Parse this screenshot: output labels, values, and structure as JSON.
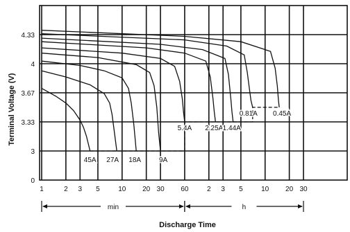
{
  "chart_data": {
    "type": "line",
    "title": "",
    "xlabel": "Discharge Time",
    "ylabel": "Terminal Voltage (V)",
    "x_scale": "log",
    "x_unit_note": "x values in minutes (60 min = 1 h)",
    "xlim_minutes": [
      1,
      1800
    ],
    "ylim": [
      0,
      4.6
    ],
    "grid": true,
    "x_ticks_minutes": [
      1,
      2,
      3,
      5,
      10,
      20,
      30,
      60,
      120,
      180,
      300,
      600,
      1200,
      1800
    ],
    "x_tick_labels": [
      "1",
      "2",
      "3",
      "5",
      "10",
      "20",
      "30",
      "60",
      "2",
      "3",
      "5",
      "10",
      "20",
      "30"
    ],
    "y_ticks": [
      0,
      3,
      3.33,
      3.67,
      4,
      4.33
    ],
    "y_tick_labels": [
      "0",
      "3",
      "3.33",
      "3.67",
      "4",
      "4.33"
    ],
    "time_ranges": [
      {
        "label": "min",
        "from_minutes": 1,
        "to_minutes": 60
      },
      {
        "label": "h",
        "from_minutes": 60,
        "to_minutes": 1800
      }
    ],
    "series": [
      {
        "name": "45A",
        "points": [
          [
            1,
            3.72
          ],
          [
            1.5,
            3.63
          ],
          [
            2,
            3.55
          ],
          [
            2.5,
            3.46
          ],
          [
            3,
            3.35
          ],
          [
            3.3,
            3.27
          ],
          [
            3.6,
            3.17
          ],
          [
            4,
            3.0
          ]
        ]
      },
      {
        "name": "27A",
        "points": [
          [
            1,
            3.92
          ],
          [
            2,
            3.85
          ],
          [
            4,
            3.76
          ],
          [
            6,
            3.66
          ],
          [
            7,
            3.55
          ],
          [
            7.5,
            3.42
          ],
          [
            8,
            3.22
          ],
          [
            8.6,
            3.0
          ]
        ]
      },
      {
        "name": "18A",
        "points": [
          [
            1,
            4.03
          ],
          [
            3,
            3.98
          ],
          [
            6,
            3.92
          ],
          [
            10,
            3.84
          ],
          [
            12,
            3.72
          ],
          [
            13,
            3.55
          ],
          [
            14,
            3.3
          ],
          [
            15,
            3.0
          ]
        ]
      },
      {
        "name": "9A",
        "points": [
          [
            1,
            4.12
          ],
          [
            5,
            4.07
          ],
          [
            15,
            3.99
          ],
          [
            22,
            3.9
          ],
          [
            25,
            3.75
          ],
          [
            27,
            3.5
          ],
          [
            28.5,
            3.2
          ],
          [
            30,
            3.0
          ]
        ]
      },
      {
        "name": "5.4A",
        "points": [
          [
            1,
            4.18
          ],
          [
            10,
            4.12
          ],
          [
            30,
            4.06
          ],
          [
            45,
            3.97
          ],
          [
            52,
            3.8
          ],
          [
            56,
            3.6
          ],
          [
            58,
            3.45
          ],
          [
            60,
            3.33
          ]
        ]
      },
      {
        "name": "2.25A",
        "points": [
          [
            1,
            4.25
          ],
          [
            20,
            4.18
          ],
          [
            60,
            4.12
          ],
          [
            110,
            4.03
          ],
          [
            125,
            3.85
          ],
          [
            135,
            3.6
          ],
          [
            140,
            3.45
          ],
          [
            145,
            3.33
          ]
        ]
      },
      {
        "name": "1.44A",
        "points": [
          [
            1,
            4.29
          ],
          [
            30,
            4.22
          ],
          [
            100,
            4.16
          ],
          [
            190,
            4.06
          ],
          [
            210,
            3.88
          ],
          [
            225,
            3.6
          ],
          [
            232,
            3.45
          ],
          [
            240,
            3.33
          ]
        ]
      },
      {
        "name": "0.81A",
        "points": [
          [
            1,
            4.34
          ],
          [
            60,
            4.27
          ],
          [
            200,
            4.2
          ],
          [
            330,
            4.1
          ],
          [
            360,
            3.9
          ],
          [
            385,
            3.7
          ],
          [
            400,
            3.58
          ],
          [
            420,
            3.5
          ]
        ]
      },
      {
        "name": "0.45A",
        "points": [
          [
            1,
            4.38
          ],
          [
            60,
            4.31
          ],
          [
            300,
            4.25
          ],
          [
            700,
            4.14
          ],
          [
            800,
            3.95
          ],
          [
            850,
            3.75
          ],
          [
            880,
            3.58
          ],
          [
            900,
            3.5
          ]
        ]
      }
    ],
    "cutoff_path": [
      [
        4,
        3.0
      ],
      [
        30,
        3.0
      ],
      [
        60,
        3.33
      ],
      [
        240,
        3.33
      ],
      [
        420,
        3.5
      ],
      [
        900,
        3.5
      ]
    ]
  }
}
